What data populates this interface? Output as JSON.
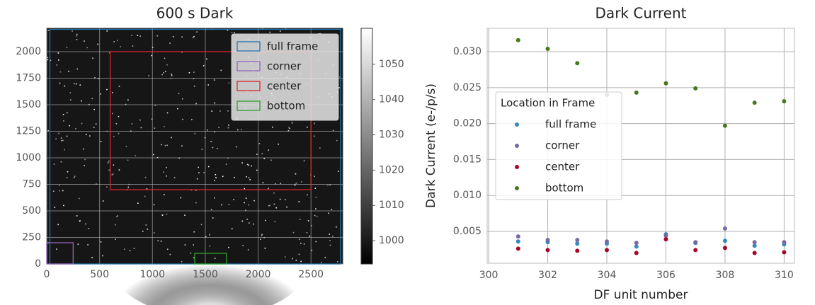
{
  "chart_data": [
    {
      "type": "image",
      "title": "600 s Dark",
      "xlim": [
        0,
        2800
      ],
      "ylim": [
        0,
        2220
      ],
      "xticks": [
        0,
        500,
        1000,
        1500,
        2000,
        2500
      ],
      "yticks": [
        0,
        250,
        500,
        750,
        1000,
        1250,
        1500,
        1750,
        2000
      ],
      "grid": true,
      "legend": "upper right",
      "boxes": [
        {
          "name": "full frame",
          "color": "#1f77b4",
          "x": [
            30,
            2780
          ],
          "y": [
            0,
            2210
          ]
        },
        {
          "name": "corner",
          "color": "#9467bd",
          "x": [
            0,
            250
          ],
          "y": [
            0,
            200
          ]
        },
        {
          "name": "center",
          "color": "#d62728",
          "x": [
            600,
            2500
          ],
          "y": [
            700,
            2000
          ]
        },
        {
          "name": "bottom",
          "color": "#2ca02c",
          "x": [
            1400,
            1700
          ],
          "y": [
            0,
            100
          ]
        }
      ],
      "colorbar": {
        "clim": [
          993.4,
          1060.2
        ],
        "ticks": [
          1000,
          1010,
          1020,
          1030,
          1040,
          1050
        ]
      }
    },
    {
      "type": "scatter",
      "title": "Dark Current",
      "x_label": "DF unit number",
      "y_label": "Dark Current (e-/p/s)",
      "xlim": [
        299.95,
        310.35
      ],
      "ylim": [
        0.00057,
        0.03325
      ],
      "xticks": [
        300,
        302,
        304,
        306,
        308,
        310
      ],
      "yticks": [
        0.005,
        {
          "value": 0.01,
          "label": "0.010"
        },
        0.015,
        {
          "value": 0.02,
          "label": "0.020"
        },
        0.025,
        {
          "value": 0.03,
          "label": "0.030"
        }
      ],
      "grid": true,
      "legend": "center left",
      "legend_title": "Location in Frame",
      "x": [
        301,
        302,
        303,
        304,
        305,
        306,
        307,
        308,
        309,
        310
      ],
      "series": [
        {
          "name": "full frame",
          "color": "#348abd",
          "values": [
            0.0036,
            0.0035,
            0.0033,
            0.0033,
            0.0029,
            0.0046,
            0.0034,
            0.0037,
            0.003,
            0.0032
          ]
        },
        {
          "name": "corner",
          "color": "#7a68a6",
          "values": [
            0.0043,
            0.0038,
            0.0038,
            0.0036,
            0.0034,
            0.0044,
            0.0035,
            0.0054,
            0.0035,
            0.0035
          ]
        },
        {
          "name": "center",
          "color": "#a60628",
          "values": [
            0.0026,
            0.0024,
            0.0023,
            0.0024,
            0.002,
            0.0039,
            0.0024,
            0.0027,
            0.002,
            0.0021
          ]
        },
        {
          "name": "bottom",
          "color": "#467821",
          "values": [
            0.0316,
            0.0304,
            0.0284,
            0.024,
            0.0243,
            0.0256,
            0.0249,
            0.0197,
            0.0229,
            0.0231
          ]
        }
      ]
    }
  ]
}
